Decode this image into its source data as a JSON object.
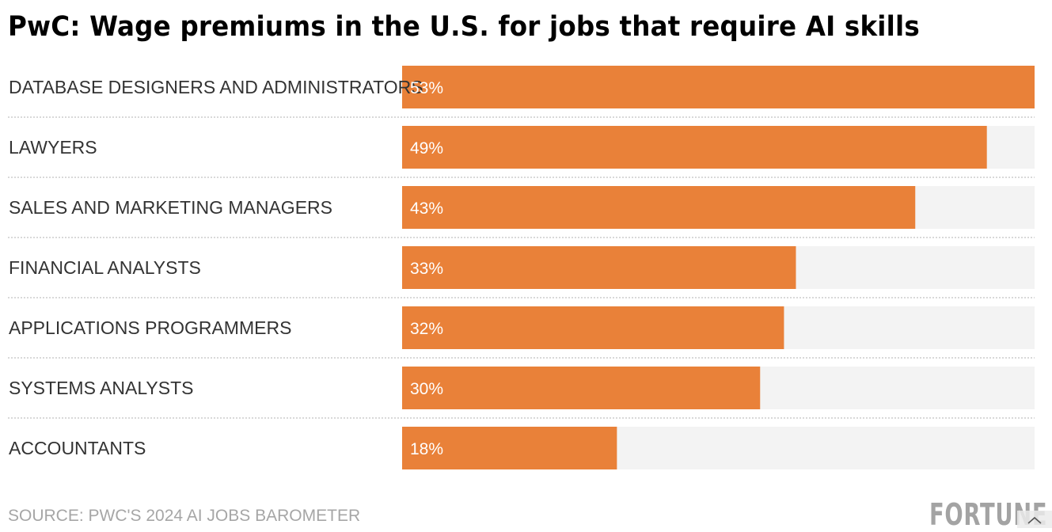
{
  "chart_data": {
    "type": "bar",
    "orientation": "horizontal",
    "title": "PwC: Wage premiums in the U.S. for jobs that require AI skills",
    "categories": [
      "DATABASE DESIGNERS AND ADMINISTRATORS",
      "LAWYERS",
      "SALES AND MARKETING MANAGERS",
      "FINANCIAL ANALYSTS",
      "APPLICATIONS PROGRAMMERS",
      "SYSTEMS ANALYSTS",
      "ACCOUNTANTS"
    ],
    "values": [
      53,
      49,
      43,
      33,
      32,
      30,
      18
    ],
    "value_labels": [
      "53%",
      "49%",
      "43%",
      "33%",
      "32%",
      "30%",
      "18%"
    ],
    "unit": "%",
    "xlim": [
      0,
      53
    ],
    "xlabel": "",
    "ylabel": "",
    "grid": false,
    "legend": "none",
    "colors": {
      "bar": "#E98139",
      "track": "#F3F3F3",
      "separator": "#D9D9D9"
    }
  },
  "footer": {
    "source": "SOURCE: PWC'S 2024 AI JOBS BAROMETER",
    "brand": "FORTUNE"
  }
}
